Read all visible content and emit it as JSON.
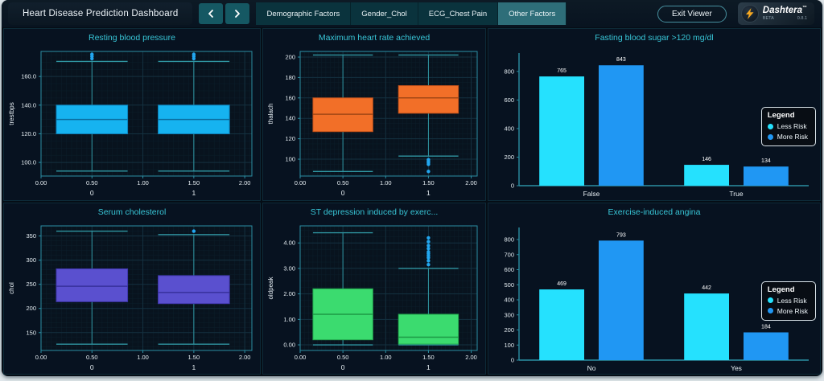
{
  "header": {
    "title": "Heart Disease Prediction Dashboard",
    "icons": [
      "chevron-left-icon",
      "chevron-right-icon",
      "lightning-bolt-icon"
    ],
    "tabs": [
      {
        "label": "Demographic Factors",
        "active": false
      },
      {
        "label": "Gender_Chol",
        "active": false
      },
      {
        "label": "ECG_Chest Pain",
        "active": false
      },
      {
        "label": "Other Factors",
        "active": true
      }
    ],
    "exit_button_label": "Exit Viewer",
    "brand": {
      "name": "Dashtera",
      "tm": "™",
      "beta": "BETA",
      "version": "0.8.1",
      "bolt_color": "#f6a821"
    }
  },
  "palette": {
    "plot_bg": "#08131e",
    "grid_minor": "#0c1f2b",
    "grid_major": "#143140",
    "plot_border": "#2b8fa3",
    "axis_text": "#e6eef3",
    "whisker": "#2f95a1",
    "outlier": "#22a7f0",
    "title_accent": "#38c5d6",
    "tab_active_bg": "#2e6e79",
    "tab_bg": "#0a333d"
  },
  "chart_data": [
    {
      "type": "box",
      "title": "Resting blood pressure",
      "ylabel": "trestbps",
      "y_domain": [
        90.5,
        177.5
      ],
      "y_ticks": [
        100,
        120,
        140,
        160
      ],
      "y_tick_labels": [
        "100.0",
        "120.0",
        "140.0",
        "160.0"
      ],
      "y_minor": 5,
      "x_domain": [
        0,
        2.07
      ],
      "x_ticks": [
        0,
        0.5,
        1,
        1.5,
        2
      ],
      "x_tick_labels": [
        "0.00",
        "0.50",
        "1.00",
        "1.50",
        "2.00"
      ],
      "x_minor": 0.05,
      "categories": [
        {
          "x": 0.5,
          "label": "0"
        },
        {
          "x": 1.5,
          "label": "1"
        }
      ],
      "box_fill": "#16b3f0",
      "box_edge": "#0d84bd",
      "median_color": "#0a6d9e",
      "boxes": [
        {
          "center": 0.5,
          "low": 94,
          "q1": 120,
          "median": 130,
          "q3": 140,
          "high": 170.5,
          "outliers": [
            172.5,
            174,
            175.5
          ]
        },
        {
          "center": 1.5,
          "low": 94,
          "q1": 120,
          "median": 130,
          "q3": 140,
          "high": 170.5,
          "outliers": [
            172.5,
            174,
            175.5
          ]
        }
      ]
    },
    {
      "type": "box",
      "title": "Maximum heart rate achieved",
      "ylabel": "thalach",
      "y_domain": [
        83.5,
        205.5
      ],
      "y_ticks": [
        100,
        120,
        140,
        160,
        180,
        200
      ],
      "y_tick_labels": [
        "100",
        "120",
        "140",
        "160",
        "180",
        "200"
      ],
      "y_minor": 5,
      "x_domain": [
        0,
        2.07
      ],
      "x_ticks": [
        0,
        0.5,
        1,
        1.5,
        2
      ],
      "x_tick_labels": [
        "0.00",
        "0.50",
        "1.00",
        "1.50",
        "2.00"
      ],
      "x_minor": 0.05,
      "categories": [
        {
          "x": 0.5,
          "label": "0"
        },
        {
          "x": 1.5,
          "label": "1"
        }
      ],
      "box_fill": "#f26f28",
      "box_edge": "#c2511a",
      "median_color": "#a34715",
      "boxes": [
        {
          "center": 0.5,
          "low": 88,
          "q1": 127,
          "median": 144,
          "q3": 160,
          "high": 202,
          "outliers": []
        },
        {
          "center": 1.5,
          "low": 103,
          "q1": 145,
          "median": 160,
          "q3": 172,
          "high": 202,
          "outliers": [
            88,
            95,
            96.5,
            98,
            99.5
          ]
        }
      ]
    },
    {
      "type": "bar",
      "title": "Fasting blood sugar >120 mg/dl",
      "categories": [
        "False",
        "True"
      ],
      "series": [
        {
          "name": "Less Risk",
          "color": "#25e1fe",
          "values": [
            765,
            146
          ]
        },
        {
          "name": "More Risk",
          "color": "#2097f3",
          "values": [
            843,
            134
          ]
        }
      ],
      "ylim": [
        0,
        895
      ],
      "y_ticks": [
        0,
        200,
        400,
        600,
        800
      ],
      "legend": {
        "title": "Legend"
      }
    },
    {
      "type": "box",
      "title": "Serum cholesterol",
      "ylabel": "chol",
      "y_domain": [
        113,
        371
      ],
      "y_ticks": [
        150,
        200,
        250,
        300,
        350
      ],
      "y_tick_labels": [
        "150",
        "200",
        "250",
        "300",
        "350"
      ],
      "y_minor": 10,
      "x_domain": [
        0,
        2.07
      ],
      "x_ticks": [
        0,
        0.5,
        1,
        1.5,
        2
      ],
      "x_tick_labels": [
        "0.00",
        "0.50",
        "1.00",
        "1.50",
        "2.00"
      ],
      "x_minor": 0.05,
      "categories": [
        {
          "x": 0.5,
          "label": "0"
        },
        {
          "x": 1.5,
          "label": "1"
        }
      ],
      "box_fill": "#5a50cf",
      "box_edge": "#4038ad",
      "median_color": "#37309c",
      "boxes": [
        {
          "center": 0.5,
          "low": 126,
          "q1": 214,
          "median": 246,
          "q3": 282,
          "high": 360,
          "outliers": []
        },
        {
          "center": 1.5,
          "low": 126,
          "q1": 210,
          "median": 233,
          "q3": 268,
          "high": 353,
          "outliers": [
            360
          ]
        }
      ]
    },
    {
      "type": "box",
      "title": "ST depression induced by exerc...",
      "ylabel": "oldpeak",
      "y_domain": [
        -0.22,
        4.67
      ],
      "y_ticks": [
        0,
        1,
        2,
        3,
        4
      ],
      "y_tick_labels": [
        "0.00",
        "1.00",
        "2.00",
        "3.00",
        "4.00"
      ],
      "y_minor": 0.25,
      "x_domain": [
        0,
        2.07
      ],
      "x_ticks": [
        0,
        0.5,
        1,
        1.5,
        2
      ],
      "x_tick_labels": [
        "0.00",
        "0.50",
        "1.00",
        "1.50",
        "2.00"
      ],
      "x_minor": 0.05,
      "categories": [
        {
          "x": 0.5,
          "label": "0"
        },
        {
          "x": 1.5,
          "label": "1"
        }
      ],
      "box_fill": "#3bdb6f",
      "box_edge": "#23a94e",
      "median_color": "#1d9a45",
      "boxes": [
        {
          "center": 0.5,
          "low": 0,
          "q1": 0.2,
          "median": 1.2,
          "q3": 2.2,
          "high": 4.4,
          "outliers": []
        },
        {
          "center": 1.5,
          "low": 0,
          "q1": 0.03,
          "median": 0.3,
          "q3": 1.2,
          "high": 3.0,
          "outliers": [
            3.15,
            3.3,
            3.42,
            3.5,
            3.58,
            3.65,
            3.78,
            3.9,
            4.05,
            4.2
          ]
        }
      ]
    },
    {
      "type": "bar",
      "title": "Exercise-induced angina",
      "categories": [
        "No",
        "Yes"
      ],
      "series": [
        {
          "name": "Less Risk",
          "color": "#25e1fe",
          "values": [
            469,
            442
          ]
        },
        {
          "name": "More Risk",
          "color": "#2097f3",
          "values": [
            793,
            184
          ]
        }
      ],
      "ylim": [
        0,
        848
      ],
      "y_ticks": [
        0,
        100,
        200,
        300,
        400,
        500,
        600,
        700,
        800
      ],
      "legend": {
        "title": "Legend"
      }
    }
  ]
}
